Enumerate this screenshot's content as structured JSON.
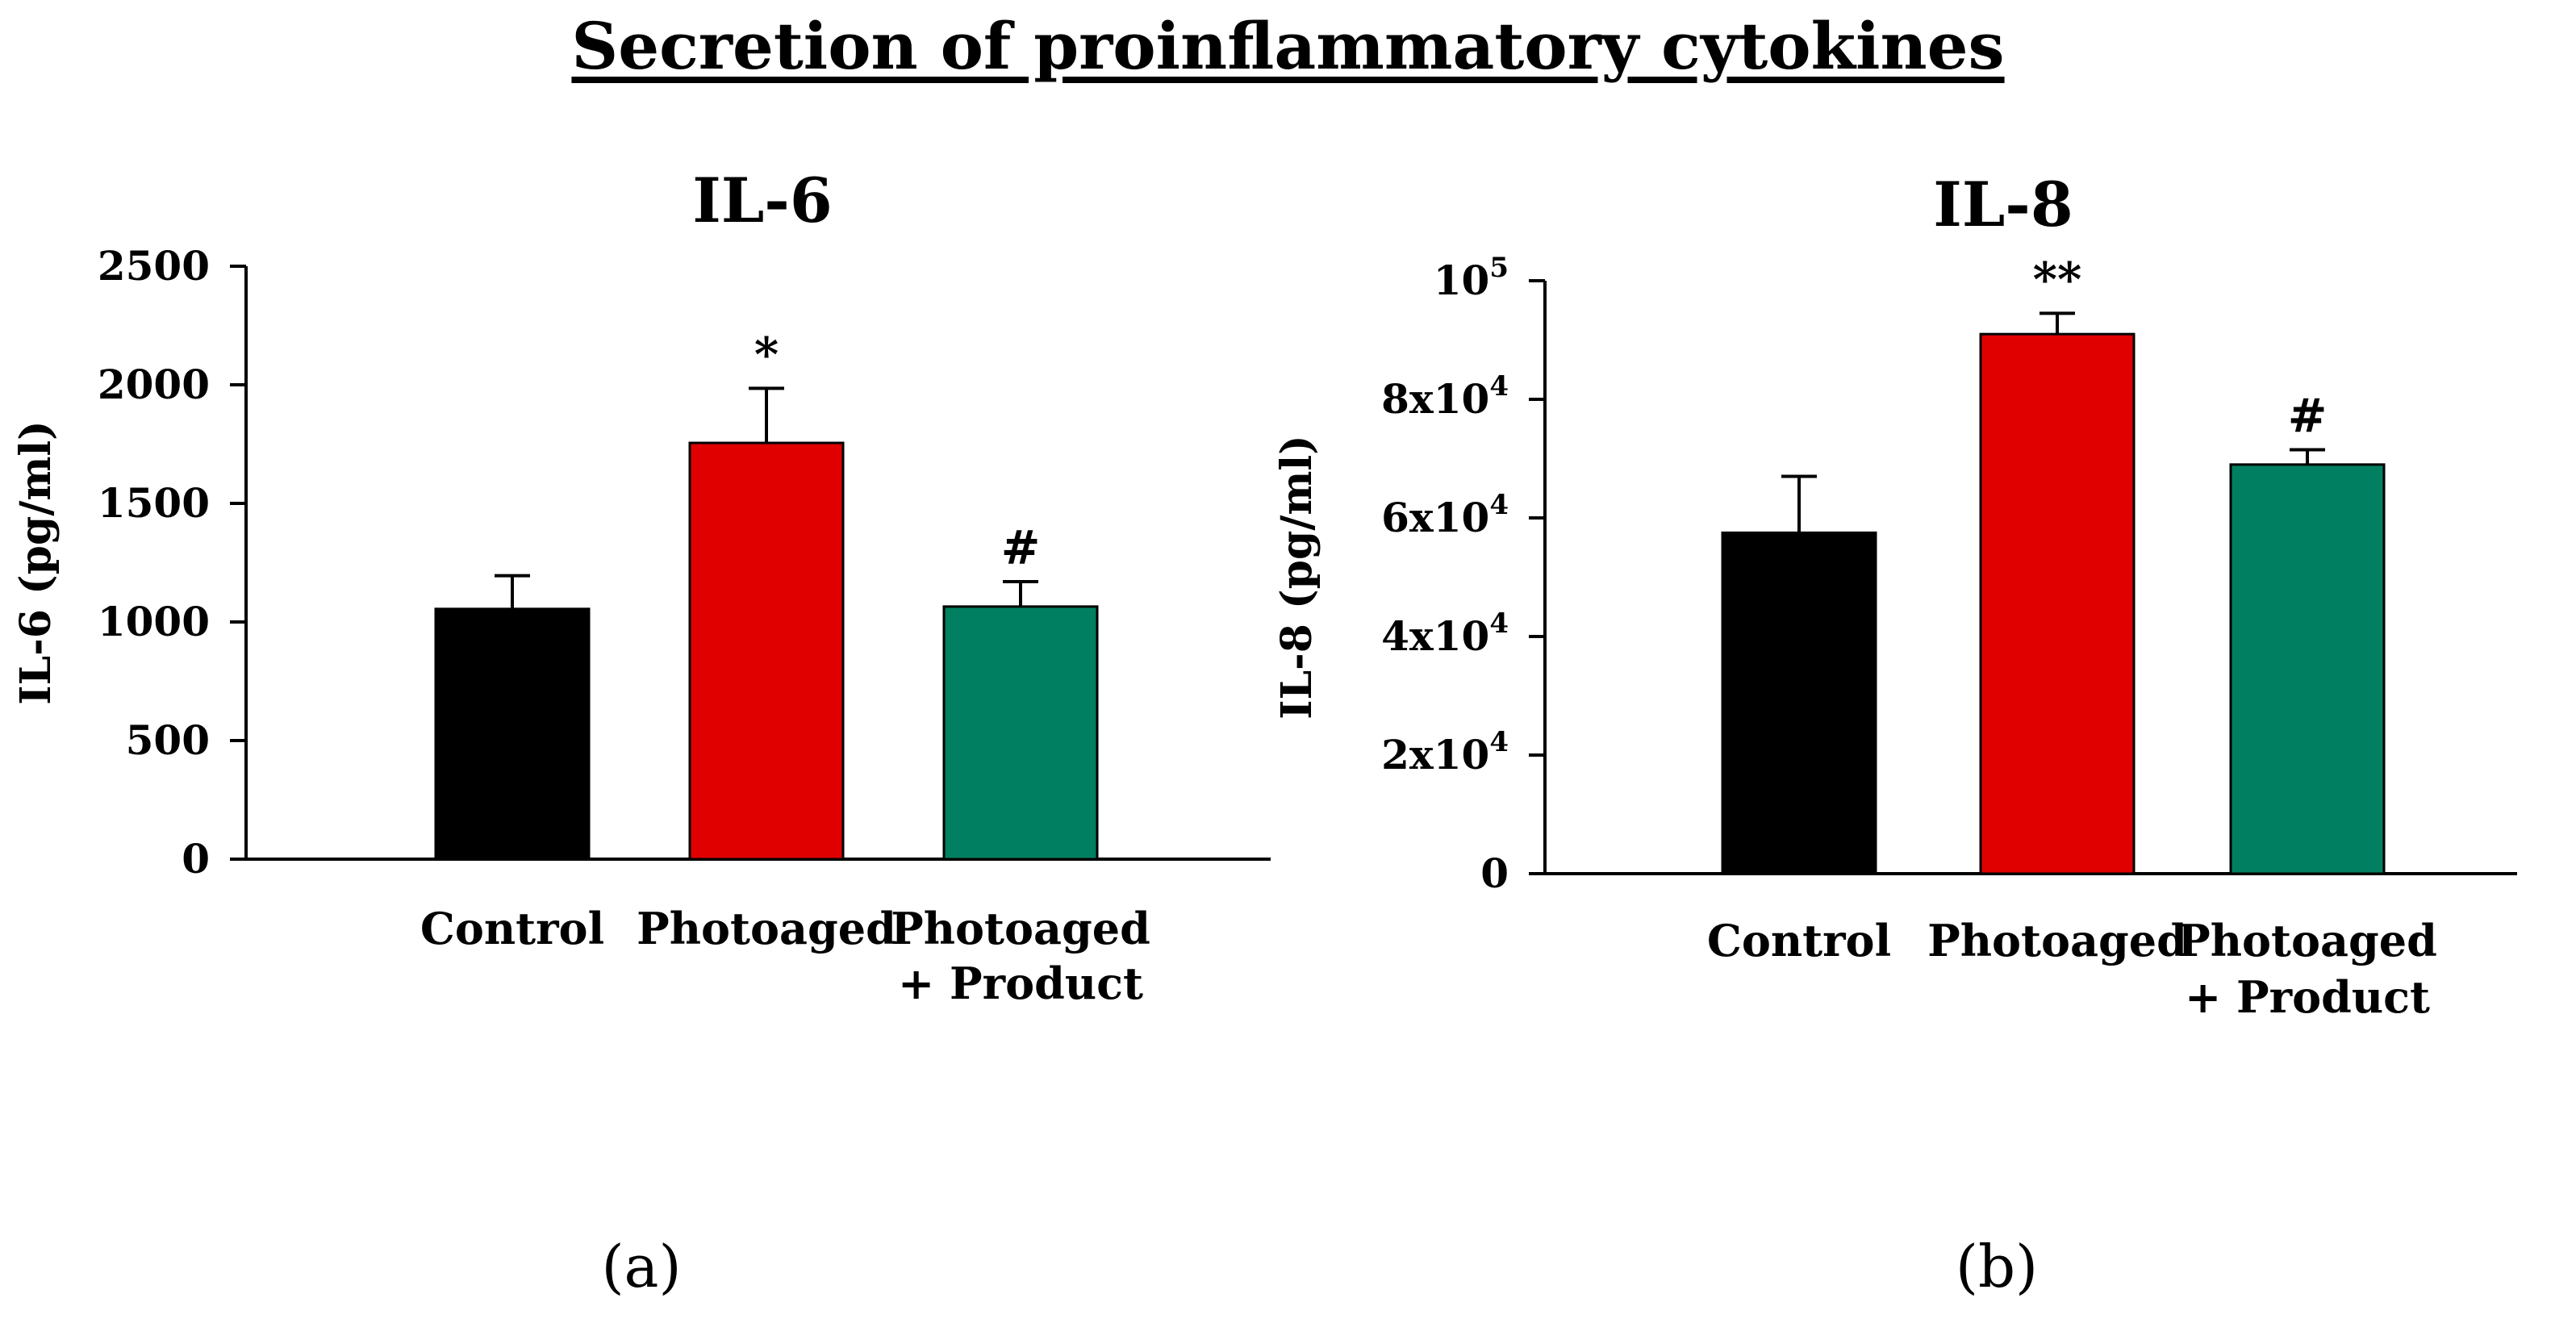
{
  "title": "Secretion of proinflammatory cytokines",
  "chart_data": [
    {
      "type": "bar",
      "panel_label": "(a)",
      "title": "IL-6",
      "ylabel": "IL-6 (pg/ml)",
      "xlabel": "",
      "ylim": [
        0,
        2500
      ],
      "yticks": [
        0,
        500,
        1000,
        1500,
        2000,
        2500
      ],
      "ytick_labels": [
        "0",
        "500",
        "1000",
        "1500",
        "2000",
        "2500"
      ],
      "categories": [
        [
          "Control"
        ],
        [
          "Photoaged"
        ],
        [
          "Photoaged",
          "+ Product"
        ]
      ],
      "values": [
        1055,
        1755,
        1065
      ],
      "errors": [
        140,
        230,
        105
      ],
      "annotations": [
        "",
        "*",
        "#"
      ],
      "colors": [
        "#000000",
        "#e00000",
        "#008060"
      ]
    },
    {
      "type": "bar",
      "panel_label": "(b)",
      "title": "IL-8",
      "ylabel": "IL-8 (pg/ml)",
      "xlabel": "",
      "ylim": [
        0,
        100000
      ],
      "yticks": [
        0,
        20000,
        40000,
        60000,
        80000,
        100000
      ],
      "ytick_labels": [
        {
          "base": "0",
          "exp": ""
        },
        {
          "base": "2x10",
          "exp": "4"
        },
        {
          "base": "4x10",
          "exp": "4"
        },
        {
          "base": "6x10",
          "exp": "4"
        },
        {
          "base": "8x10",
          "exp": "4"
        },
        {
          "base": "10",
          "exp": "5"
        }
      ],
      "categories": [
        [
          "Control"
        ],
        [
          "Photoaged"
        ],
        [
          "Photoaged",
          "+ Product"
        ]
      ],
      "values": [
        57500,
        91000,
        69000
      ],
      "errors": [
        9500,
        3500,
        2500
      ],
      "annotations": [
        "",
        "**",
        "#"
      ],
      "colors": [
        "#000000",
        "#e00000",
        "#008060"
      ]
    }
  ]
}
